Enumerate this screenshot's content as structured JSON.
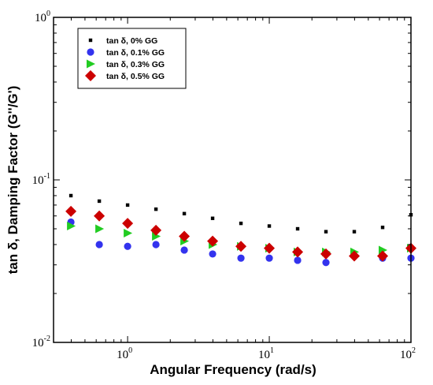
{
  "chart_data": {
    "type": "scatter",
    "x_scale": "log",
    "y_scale": "log",
    "xlabel": "Angular Frequency (rad/s)",
    "ylabel": "tan δ, Damping Factor (G''/G')",
    "xlim": [
      0.3,
      100
    ],
    "ylim": [
      0.01,
      1
    ],
    "grid": false,
    "legend_position": "top-left",
    "x_ticks": [
      {
        "base": "10",
        "exp": "0",
        "value": 1
      },
      {
        "base": "10",
        "exp": "1",
        "value": 10
      },
      {
        "base": "10",
        "exp": "2",
        "value": 100
      }
    ],
    "y_ticks": [
      {
        "base": "10",
        "exp": "-2",
        "value": 0.01
      },
      {
        "base": "10",
        "exp": "-1",
        "value": 0.1
      },
      {
        "base": "10",
        "exp": "0",
        "value": 1
      }
    ],
    "series": [
      {
        "name": "tan δ, 0% GG",
        "marker": "square",
        "color": "#000000",
        "x": [
          0.398,
          0.631,
          1.0,
          1.585,
          2.512,
          3.981,
          6.31,
          10.0,
          15.85,
          25.12,
          39.81,
          63.1,
          100.0
        ],
        "y": [
          0.08,
          0.074,
          0.07,
          0.066,
          0.062,
          0.058,
          0.054,
          0.052,
          0.05,
          0.048,
          0.048,
          0.051,
          0.061
        ]
      },
      {
        "name": "tan δ, 0.1% GG",
        "marker": "circle",
        "color": "#3333ee",
        "x": [
          0.398,
          0.631,
          1.0,
          1.585,
          2.512,
          3.981,
          6.31,
          10.0,
          15.85,
          25.12,
          39.81,
          63.1,
          100.0
        ],
        "y": [
          0.055,
          0.04,
          0.039,
          0.04,
          0.037,
          0.035,
          0.033,
          0.033,
          0.032,
          0.031,
          0.034,
          0.033,
          0.033
        ]
      },
      {
        "name": "tan δ, 0.3% GG",
        "marker": "triangle-right",
        "color": "#22cc22",
        "x": [
          0.398,
          0.631,
          1.0,
          1.585,
          2.512,
          3.981,
          6.31,
          10.0,
          15.85,
          25.12,
          39.81,
          63.1,
          100.0
        ],
        "y": [
          0.052,
          0.05,
          0.047,
          0.045,
          0.042,
          0.04,
          0.039,
          0.038,
          0.036,
          0.036,
          0.036,
          0.037,
          0.038
        ]
      },
      {
        "name": "tan δ, 0.5% GG",
        "marker": "diamond",
        "color": "#cc0000",
        "x": [
          0.398,
          0.631,
          1.0,
          1.585,
          2.512,
          3.981,
          6.31,
          10.0,
          15.85,
          25.12,
          39.81,
          63.1,
          100.0
        ],
        "y": [
          0.064,
          0.06,
          0.054,
          0.049,
          0.045,
          0.042,
          0.039,
          0.038,
          0.036,
          0.035,
          0.034,
          0.034,
          0.038
        ]
      }
    ]
  }
}
